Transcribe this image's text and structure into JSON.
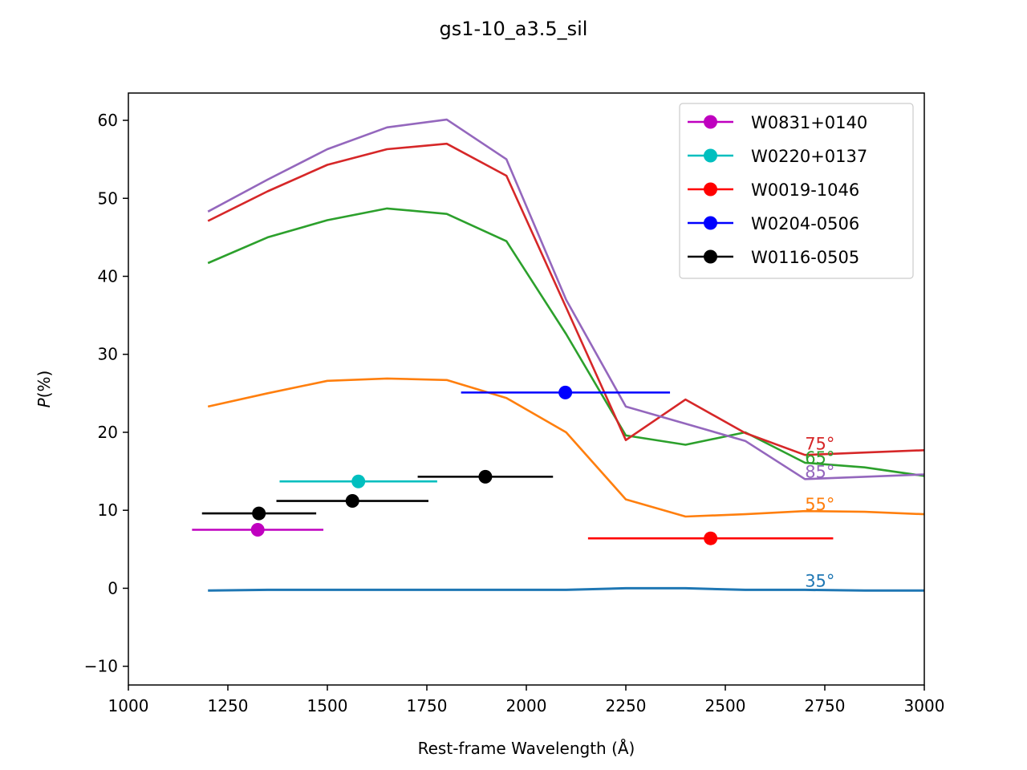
{
  "chart_data": {
    "type": "line",
    "title": "gs1-10_a3.5_sil",
    "xlabel": "Rest-frame Wavelength (Å)",
    "ylabel_symbol": "P",
    "ylabel_unit": "(%)",
    "xlim": [
      1000,
      3000
    ],
    "ylim": [
      -12.4,
      63.5
    ],
    "xticks": [
      1000,
      1250,
      1500,
      1750,
      2000,
      2250,
      2500,
      2750,
      3000
    ],
    "xtick_labels": [
      "1000",
      "1250",
      "1500",
      "1750",
      "2000",
      "2250",
      "2500",
      "2750",
      "3000"
    ],
    "yticks": [
      -10,
      0,
      10,
      20,
      30,
      40,
      50,
      60
    ],
    "ytick_labels": [
      "−10",
      "0",
      "10",
      "20",
      "30",
      "40",
      "50",
      "60"
    ],
    "grid": false,
    "legend_position": "top-right",
    "model_series": [
      {
        "label": "35°",
        "color": "#1f77b4",
        "label_at": [
          2700,
          0.2
        ],
        "x": [
          1200,
          1350,
          1500,
          1650,
          1800,
          1950,
          2100,
          2250,
          2400,
          2550,
          2700,
          2850,
          3000
        ],
        "values": [
          -0.3,
          -0.2,
          -0.2,
          -0.2,
          -0.2,
          -0.2,
          -0.2,
          0.0,
          0.0,
          -0.2,
          -0.2,
          -0.3,
          -0.3
        ]
      },
      {
        "label": "55°",
        "color": "#ff7f0e",
        "label_at": [
          2700,
          10.0
        ],
        "x": [
          1200,
          1350,
          1500,
          1650,
          1800,
          1950,
          2100,
          2250,
          2400,
          2550,
          2700,
          2850,
          3000
        ],
        "values": [
          23.3,
          25.0,
          26.6,
          26.9,
          26.7,
          24.4,
          20.0,
          11.4,
          9.2,
          9.5,
          9.9,
          9.8,
          9.5
        ]
      },
      {
        "label": "65°",
        "color": "#2ca02c",
        "label_at": [
          2700,
          16.0
        ],
        "x": [
          1200,
          1350,
          1500,
          1650,
          1800,
          1950,
          2100,
          2250,
          2400,
          2550,
          2700,
          2850,
          3000
        ],
        "values": [
          41.7,
          45.0,
          47.2,
          48.7,
          48.0,
          44.5,
          32.6,
          19.6,
          18.4,
          20.0,
          16.1,
          15.5,
          14.4
        ]
      },
      {
        "label": "75°",
        "color": "#d62728",
        "label_at": [
          2700,
          17.8
        ],
        "x": [
          1200,
          1350,
          1500,
          1650,
          1800,
          1950,
          2100,
          2250,
          2400,
          2550,
          2700,
          2850,
          3000
        ],
        "values": [
          47.1,
          50.9,
          54.3,
          56.3,
          57.0,
          52.9,
          36.0,
          19.0,
          24.2,
          19.9,
          17.1,
          17.4,
          17.7
        ]
      },
      {
        "label": "85°",
        "color": "#9467bd",
        "label_at": [
          2700,
          14.2
        ],
        "x": [
          1200,
          1350,
          1500,
          1650,
          1800,
          1950,
          2100,
          2250,
          2400,
          2550,
          2700,
          2850,
          3000
        ],
        "values": [
          48.3,
          52.4,
          56.3,
          59.1,
          60.1,
          55.0,
          37.0,
          23.3,
          21.1,
          18.9,
          14.0,
          14.3,
          14.6
        ]
      }
    ],
    "observations": [
      {
        "name": "W0831+0140",
        "color": "#bf00bf",
        "x": 1325,
        "xmin": 1160,
        "xmax": 1490,
        "y": 7.5,
        "yerr": 0.5
      },
      {
        "name": "W0220+0137",
        "color": "#00bfbf",
        "x": 1578,
        "xmin": 1380,
        "xmax": 1776,
        "y": 13.7,
        "yerr": 0.5
      },
      {
        "name": "W0019-1046",
        "color": "#ff0000",
        "x": 2463,
        "xmin": 2155,
        "xmax": 2771,
        "y": 6.4,
        "yerr": 0.5
      },
      {
        "name": "W0204-0506",
        "color": "#0000ff",
        "x": 2098,
        "xmin": 1836,
        "xmax": 2361,
        "y": 25.1,
        "yerr": 0.5
      },
      {
        "name": "W0116-0505",
        "color": "#000000",
        "x": 1328,
        "xmin": 1185,
        "xmax": 1472,
        "y": 9.6,
        "yerr": 0.5
      },
      {
        "name": "W0116-0505",
        "color": "#000000",
        "x": 1563,
        "xmin": 1372,
        "xmax": 1754,
        "y": 11.2,
        "yerr": 0.5
      },
      {
        "name": "W0116-0505",
        "color": "#000000",
        "x": 1897,
        "xmin": 1727,
        "xmax": 2067,
        "y": 14.3,
        "yerr": 0.5
      }
    ],
    "legend": [
      {
        "name": "W0831+0140",
        "color": "#bf00bf"
      },
      {
        "name": "W0220+0137",
        "color": "#00bfbf"
      },
      {
        "name": "W0019-1046",
        "color": "#ff0000"
      },
      {
        "name": "W0204-0506",
        "color": "#0000ff"
      },
      {
        "name": "W0116-0505",
        "color": "#000000"
      }
    ]
  }
}
